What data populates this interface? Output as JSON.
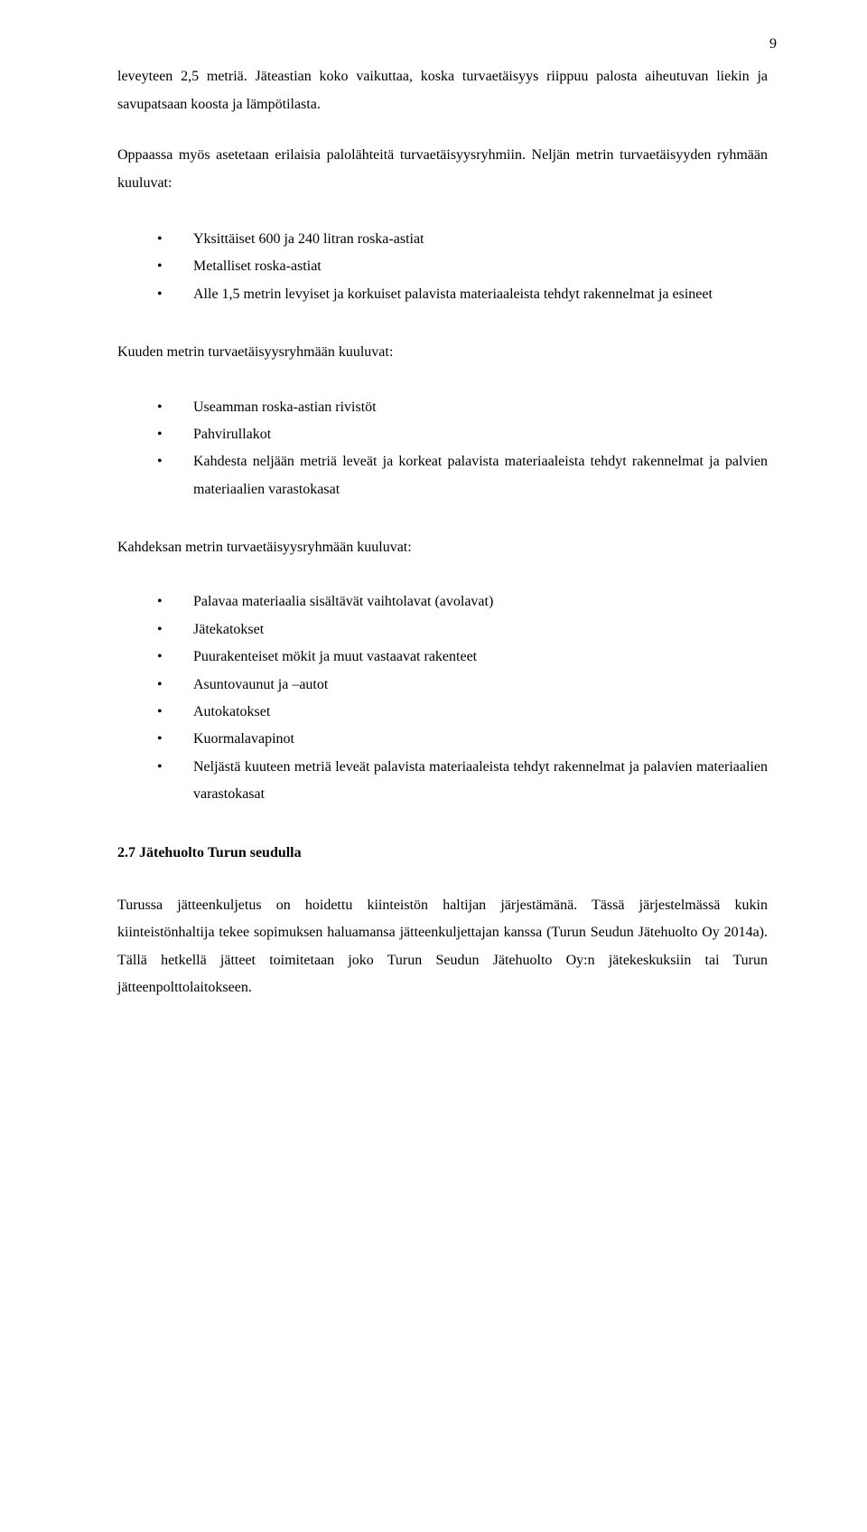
{
  "pageNumber": "9",
  "para1": "leveyteen 2,5 metriä. Jäteastian koko vaikuttaa, koska turvaetäisyys riippuu palosta aiheutuvan liekin ja savupatsaan koosta ja lämpötilasta.",
  "para2": "Oppaassa myös asetetaan erilaisia palolähteitä turvaetäisyysryhmiin. Neljän metrin turvaetäisyyden ryhmään kuuluvat:",
  "group4m": {
    "items": [
      "Yksittäiset 600 ja 240 litran roska-astiat",
      "Metalliset roska-astiat",
      "Alle 1,5 metrin levyiset ja korkuiset palavista materiaaleista tehdyt rakennelmat ja esineet"
    ]
  },
  "group6mLead": "Kuuden metrin turvaetäisyysryhmään kuuluvat:",
  "group6m": {
    "items": [
      "Useamman roska-astian rivistöt",
      "Pahvirullakot",
      "Kahdesta neljään metriä leveät ja korkeat palavista materiaaleista tehdyt rakennelmat ja palvien materiaalien varastokasat"
    ]
  },
  "group8mLead": "Kahdeksan metrin turvaetäisyysryhmään kuuluvat:",
  "group8m": {
    "items": [
      "Palavaa materiaalia sisältävät vaihtolavat (avolavat)",
      "Jätekatokset",
      "Puurakenteiset mökit ja muut vastaavat rakenteet",
      "Asuntovaunut ja –autot",
      "Autokatokset",
      "Kuormalavapinot",
      "Neljästä kuuteen metriä leveät palavista materiaaleista tehdyt rakennelmat ja palavien materiaalien varastokasat"
    ]
  },
  "heading27": "2.7  Jätehuolto Turun seudulla",
  "para3": "Turussa jätteenkuljetus on hoidettu kiinteistön haltijan järjestämänä. Tässä järjestelmässä kukin kiinteistönhaltija tekee sopimuksen haluamansa jätteenkuljettajan kanssa (Turun Seudun Jätehuolto Oy 2014a). Tällä hetkellä jätteet toimitetaan joko Turun Seudun Jätehuolto Oy:n jätekeskuksiin tai Turun jätteenpolttolaitokseen."
}
